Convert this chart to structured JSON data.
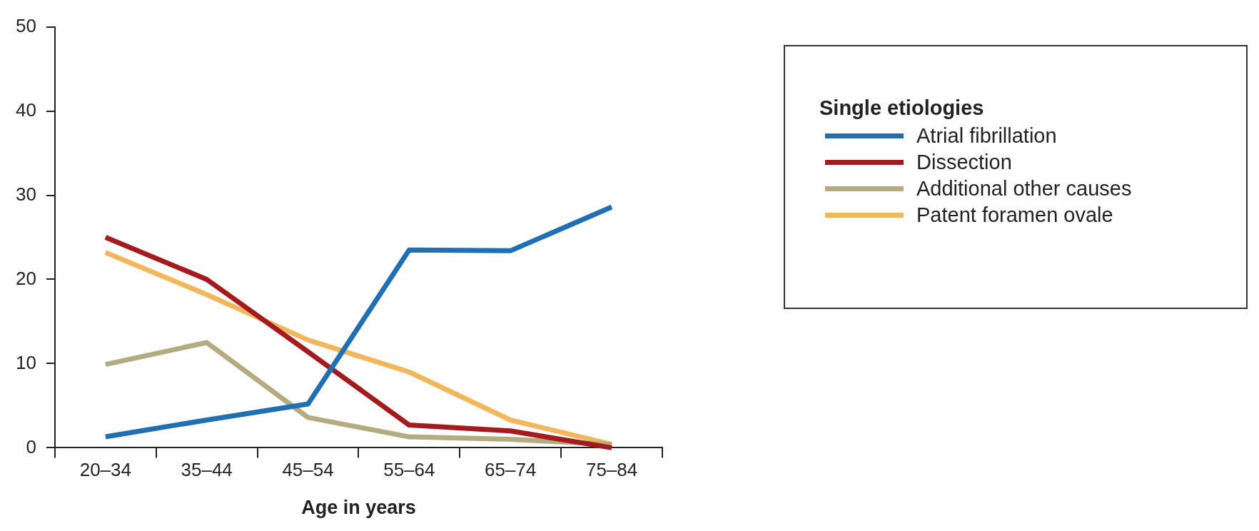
{
  "chart_data": {
    "type": "line",
    "xlabel": "Age in years",
    "legend_title": "Single etiologies",
    "legend": "right",
    "grid": false,
    "marker": "none",
    "line_style": "solid",
    "categories": [
      "20–34",
      "35–44",
      "45–54",
      "55–64",
      "65–74",
      "75–84"
    ],
    "ylim": [
      0,
      50
    ],
    "yticks": [
      0,
      10,
      20,
      30,
      40,
      50
    ],
    "series": [
      {
        "name": "Atrial fibrillation",
        "color": "#1f6fb2",
        "values": [
          1.3,
          3.3,
          5.2,
          23.5,
          23.4,
          28.6
        ]
      },
      {
        "name": "Dissection",
        "color": "#a31a1f",
        "values": [
          25.0,
          20.0,
          11.4,
          2.7,
          2.0,
          0
        ]
      },
      {
        "name": "Additional other causes",
        "color": "#b4ab80",
        "values": [
          9.9,
          12.5,
          3.6,
          1.3,
          1.0,
          0.4
        ]
      },
      {
        "name": "Patent foramen ovale",
        "color": "#f2b65c",
        "values": [
          23.2,
          18.2,
          12.8,
          9.0,
          3.3,
          0.4
        ]
      }
    ]
  }
}
